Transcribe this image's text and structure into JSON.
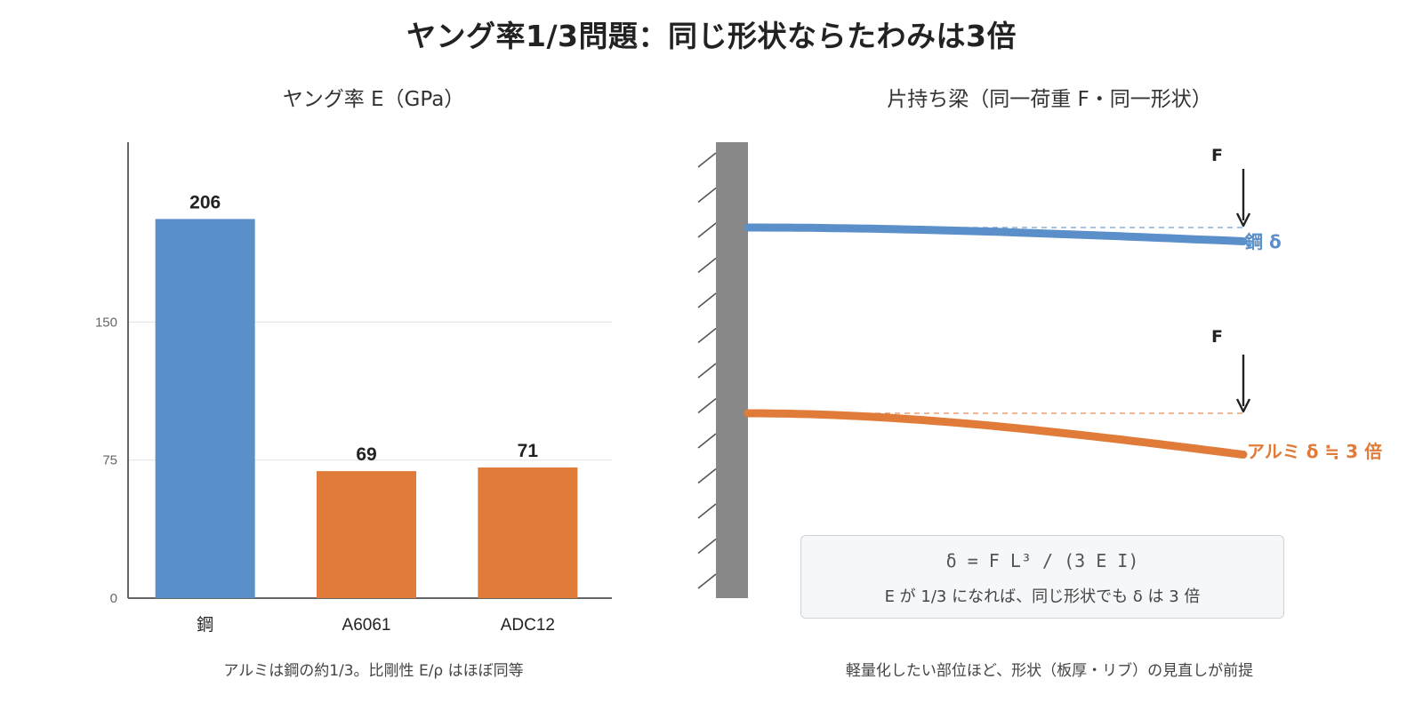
{
  "title": "ヤング率1/3問題：同じ形状ならたわみは3倍",
  "colors": {
    "steel": "#5b8fc9",
    "aluminum": "#e07b39",
    "wall": "#888888",
    "axis": "#666666"
  },
  "chart_data": [
    {
      "type": "bar",
      "title": "ヤング率 E（GPa）",
      "categories": [
        "鋼",
        "A6061",
        "ADC12"
      ],
      "values": [
        206,
        69,
        71
      ],
      "value_labels": [
        "206",
        "69",
        "71"
      ],
      "bar_colors": [
        "#5b8fc9",
        "#e07b39",
        "#e07b39"
      ],
      "yticks": [
        0,
        75,
        150
      ],
      "ylim": [
        0,
        240
      ],
      "grid": true,
      "caption": "アルミは鋼の約1/3。比剛性 E/ρ はほぼ同等"
    },
    {
      "type": "diagram",
      "title": "片持ち梁（同一荷重 F・同一形状）",
      "force_label": "F",
      "beams": [
        {
          "label": "鋼 δ",
          "color": "#5b8fc9",
          "relative_deflection": 1
        },
        {
          "label": "アルミ δ ≒ 3 倍",
          "color": "#e07b39",
          "relative_deflection": 3
        }
      ],
      "formula": "δ = F L³ / (3 E I)",
      "formula_note": "E が 1/3 になれば、同じ形状でも δ は 3 倍",
      "caption": "軽量化したい部位ほど、形状（板厚・リブ）の見直しが前提"
    }
  ]
}
